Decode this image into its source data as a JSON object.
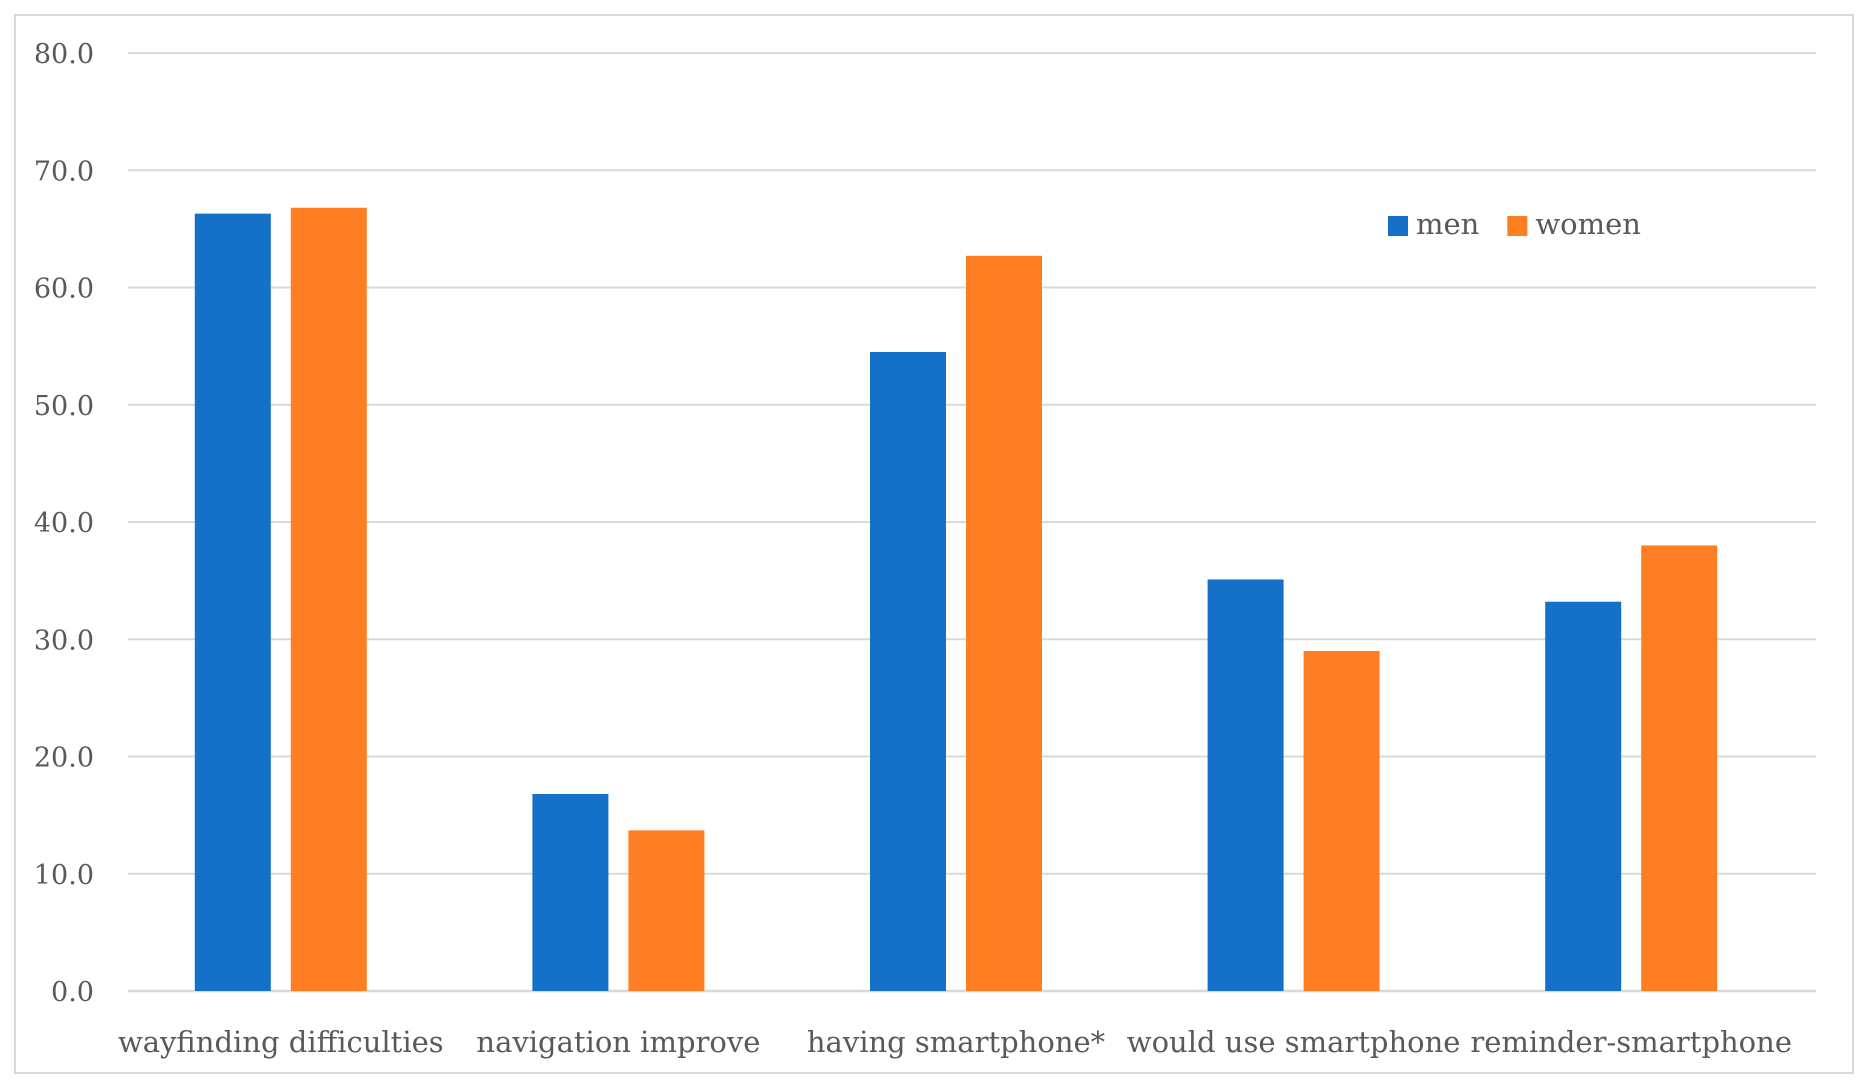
{
  "chart_data": {
    "type": "bar",
    "title": "",
    "xlabel": "",
    "ylabel": "",
    "ylim": [
      0,
      80
    ],
    "yticks": [
      "0.0",
      "10.0",
      "20.0",
      "30.0",
      "40.0",
      "50.0",
      "60.0",
      "70.0",
      "80.0"
    ],
    "grid": true,
    "legend_position": "top-right",
    "categories": [
      "wayfinding difficulties",
      "navigation improve",
      "having smartphone*",
      "would use smartphone",
      "reminder-smartphone"
    ],
    "series": [
      {
        "name": "men",
        "color": "#1570c8",
        "values": [
          66.3,
          16.8,
          54.5,
          35.1,
          33.2
        ]
      },
      {
        "name": "women",
        "color": "#fd7e23",
        "values": [
          66.8,
          13.7,
          62.7,
          29.0,
          38.0
        ]
      }
    ]
  }
}
